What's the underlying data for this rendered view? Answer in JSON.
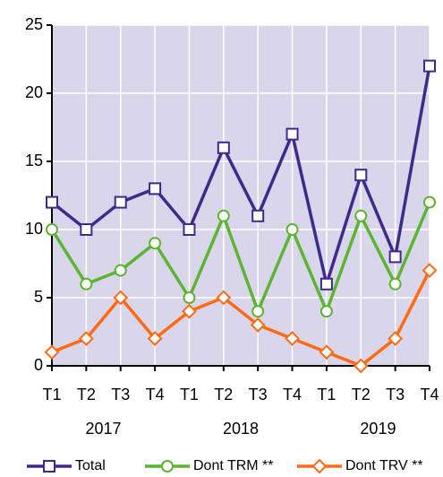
{
  "chart_data": {
    "type": "line",
    "categories": [
      "T1",
      "T2",
      "T3",
      "T4",
      "T1",
      "T2",
      "T3",
      "T4",
      "T1",
      "T2",
      "T3",
      "T4"
    ],
    "x_groups": [
      "2017",
      "2018",
      "2019"
    ],
    "series": [
      {
        "name": "Total",
        "color": "#3f2a8c",
        "marker": "square",
        "values": [
          12,
          10,
          12,
          13,
          10,
          16,
          11,
          17,
          6,
          14,
          8,
          22
        ]
      },
      {
        "name": "Dont TRM **",
        "color": "#5cb531",
        "marker": "circle",
        "values": [
          10,
          6,
          7,
          9,
          5,
          11,
          4,
          10,
          4,
          11,
          6,
          12
        ]
      },
      {
        "name": "Dont TRV **",
        "color": "#ff6a13",
        "marker": "diamond",
        "values": [
          1,
          2,
          5,
          2,
          4,
          5,
          3,
          2,
          1,
          0,
          2,
          7
        ]
      }
    ],
    "ylim": [
      0,
      25
    ],
    "yticks": [
      0,
      5,
      10,
      15,
      20,
      25
    ],
    "grid": true,
    "legend": "bottom"
  }
}
